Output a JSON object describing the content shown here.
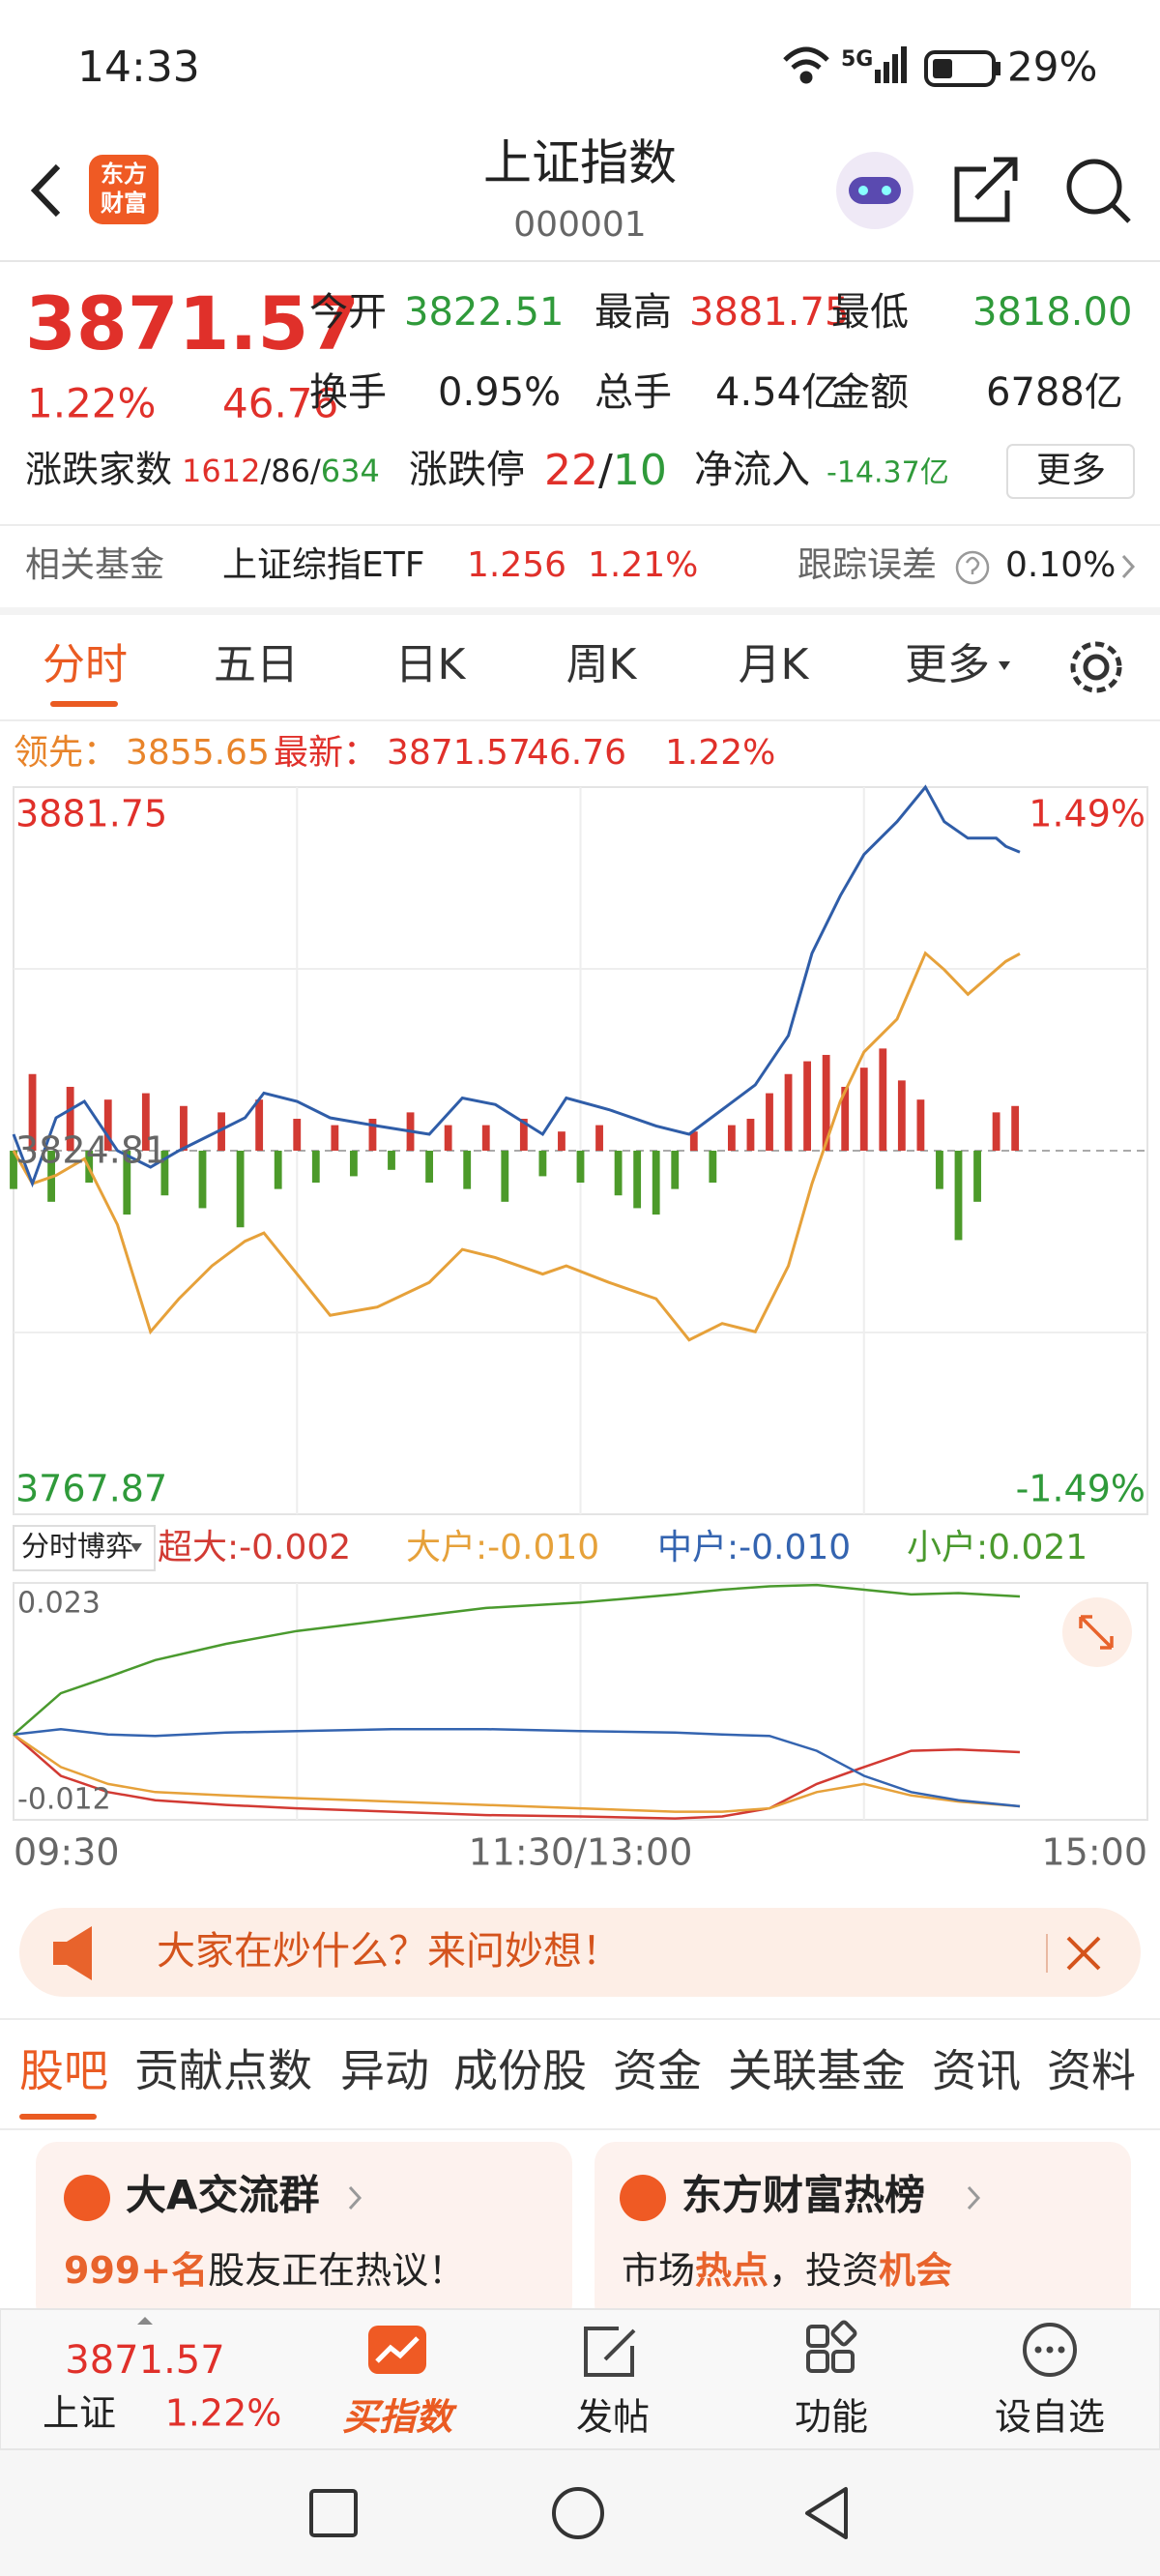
{
  "status_bar": {
    "time": "14:33",
    "battery": "29%"
  },
  "header": {
    "logo": [
      "东方",
      "财富"
    ],
    "title": "上证指数",
    "code": "000001"
  },
  "quote": {
    "price": "3871.57",
    "change_pct": "1.22%",
    "change": "46.76",
    "stats": [
      {
        "label": "今开",
        "value": "3822.51"
      },
      {
        "label": "最高",
        "value": "3881.75"
      },
      {
        "label": "最低",
        "value": "3818.00"
      },
      {
        "label": "换手",
        "value": "0.95%"
      },
      {
        "label": "总手",
        "value": "4.54亿"
      },
      {
        "label": "金额",
        "value": "6788亿"
      }
    ],
    "breadth": {
      "label": "涨跌家数",
      "parts": [
        "1612",
        "/86/",
        "634"
      ]
    },
    "limit": {
      "label": "涨跌停",
      "parts": [
        "22",
        "/",
        "10"
      ]
    },
    "net_inflow": {
      "label": "净流入",
      "value": "-14.37亿"
    },
    "more": "更多"
  },
  "related_fund": {
    "label": "相关基金",
    "name": "上证综指ETF",
    "price": "1.256",
    "change": "1.21%",
    "error_label": "跟踪误差",
    "error": "0.10%"
  },
  "tabs": [
    "分时",
    "五日",
    "日K",
    "周K",
    "月K",
    "更多"
  ],
  "legend": {
    "lead_label": "领先：",
    "lead": "3855.65",
    "latest_label": "最新：",
    "latest": "3871.57",
    "change": "46.76",
    "pct": "1.22%"
  },
  "intraday_chart": {
    "type": "line",
    "xlim": [
      0,
      240
    ],
    "xgrid": [
      60,
      120,
      180
    ],
    "ylim": [
      3767.87,
      3881.75
    ],
    "yticks": [
      3767.87,
      3824.81,
      3881.75
    ],
    "ygrid": [
      3796.34,
      3853.28
    ],
    "y2lim": [
      -1.49,
      1.49
    ],
    "y2ticks": [
      {
        "value": -1.49,
        "label": "-1.49%"
      },
      {
        "value": 1.49,
        "label": "1.49%"
      }
    ],
    "x": [
      0,
      4,
      9,
      15,
      22,
      29,
      35,
      42,
      49,
      53,
      60,
      67,
      77,
      88,
      95,
      102,
      112,
      117,
      126,
      136,
      143,
      150,
      157,
      164,
      169,
      175,
      180,
      187,
      193,
      197,
      202,
      208,
      210,
      213
    ],
    "series": [
      {
        "color": "#2f5da8",
        "values": [
          3827.39,
          3819.66,
          3829.96,
          3832.54,
          3824.81,
          3822.23,
          3824.81,
          3827.39,
          3829.96,
          3833.83,
          3832.54,
          3829.96,
          3828.68,
          3827.39,
          3833.06,
          3832.03,
          3827.39,
          3833.06,
          3831.25,
          3828.68,
          3827.39,
          3831.25,
          3835.12,
          3842.85,
          3855.73,
          3864.75,
          3871.19,
          3876.34,
          3881.75,
          3876.34,
          3873.76,
          3873.76,
          3872.48,
          3871.57
        ]
      },
      {
        "color": "#e6a13a",
        "values": [
          3824.81,
          3819.66,
          3820.95,
          3823.52,
          3813.22,
          3796.46,
          3801.62,
          3806.77,
          3810.64,
          3811.92,
          3805.48,
          3799.04,
          3800.33,
          3804.19,
          3809.35,
          3808.06,
          3805.48,
          3806.77,
          3804.19,
          3801.62,
          3795.17,
          3797.75,
          3796.46,
          3806.77,
          3819.66,
          3832.54,
          3840.27,
          3845.42,
          3855.73,
          3853.16,
          3849.29,
          3853.16,
          3854.44,
          3855.65
        ]
      }
    ],
    "bars": {
      "up_color": "#d23a33",
      "down_color": "#4c9a2a",
      "x": [
        0,
        4,
        8,
        12,
        16,
        20,
        24,
        28,
        32,
        36,
        40,
        44,
        48,
        52,
        56,
        60,
        64,
        68,
        72,
        76,
        80,
        84,
        88,
        92,
        96,
        100,
        104,
        108,
        112,
        116,
        120,
        124,
        128,
        132,
        136,
        140,
        144,
        148,
        152,
        156,
        160,
        164,
        168,
        172,
        176,
        180,
        184,
        188,
        192,
        196,
        200,
        204,
        208,
        212
      ],
      "values": [
        -6,
        12,
        -8,
        10,
        -5,
        8,
        -10,
        9,
        -7,
        7,
        -9,
        6,
        -12,
        8,
        -6,
        5,
        -5,
        4,
        -4,
        5,
        -3,
        6,
        -5,
        4,
        -6,
        4,
        -8,
        5,
        -4,
        3,
        -5,
        4,
        -7,
        -9,
        -10,
        -6,
        3,
        -5,
        4,
        5,
        9,
        12,
        14,
        15,
        10,
        13,
        16,
        11,
        8,
        -6,
        -14,
        -8,
        6,
        7
      ]
    }
  },
  "fund_flow_chart": {
    "type": "line",
    "selector": "分时博弈",
    "xlim": [
      0,
      240
    ],
    "xgrid": [
      60,
      120,
      180
    ],
    "xticks": [
      {
        "value": 0,
        "label": "09:30"
      },
      {
        "value": 120,
        "label": "11:30/13:00"
      },
      {
        "value": 240,
        "label": "15:00"
      }
    ],
    "ylim": [
      -0.012,
      0.023
    ],
    "yticks": [
      -0.012,
      0.023
    ],
    "x": [
      0,
      10,
      20,
      30,
      45,
      60,
      80,
      100,
      120,
      140,
      150,
      160,
      170,
      180,
      190,
      200,
      213
    ],
    "series": [
      {
        "name": "超大:-0.002",
        "color": "#d23a33",
        "values": [
          0.0006,
          -0.0055,
          -0.0079,
          -0.0091,
          -0.0098,
          -0.0103,
          -0.0108,
          -0.0113,
          -0.0115,
          -0.0118,
          -0.0115,
          -0.0103,
          -0.0067,
          -0.0042,
          -0.0018,
          -0.0016,
          -0.002
        ]
      },
      {
        "name": "大户:-0.010",
        "color": "#e6a13a",
        "values": [
          0.0006,
          -0.0042,
          -0.0067,
          -0.0079,
          -0.0084,
          -0.0088,
          -0.0093,
          -0.0098,
          -0.0103,
          -0.0108,
          -0.0108,
          -0.0103,
          -0.0079,
          -0.0067,
          -0.0084,
          -0.0093,
          -0.01
        ]
      },
      {
        "name": "中户:-0.010",
        "color": "#3464b0",
        "values": [
          0.0006,
          0.0014,
          0.0006,
          0.0004,
          0.0009,
          0.0011,
          0.0014,
          0.0014,
          0.0011,
          0.0009,
          0.0006,
          0.0004,
          -0.0018,
          -0.0055,
          -0.0079,
          -0.0091,
          -0.01
        ]
      },
      {
        "name": "小户:0.021",
        "color": "#4a9a2e",
        "values": [
          0.0006,
          0.0067,
          0.0091,
          0.0116,
          0.014,
          0.0159,
          0.0176,
          0.0193,
          0.0201,
          0.0213,
          0.022,
          0.0225,
          0.0227,
          0.022,
          0.0213,
          0.0215,
          0.021
        ]
      }
    ]
  },
  "banner": "大家在炒什么？来问妙想！",
  "section_tabs": [
    "股吧",
    "贡献点数",
    "异动",
    "成份股",
    "资金",
    "关联基金",
    "资讯",
    "资料"
  ],
  "cards": [
    {
      "title": "大A交流群",
      "line": [
        "999+名",
        "股友正在热议！"
      ]
    },
    {
      "title": "东方财富热榜",
      "line": [
        "市场",
        "热点",
        "，投资",
        "机会"
      ]
    }
  ],
  "bottom_nav": {
    "price": "3871.57",
    "name": "上证",
    "pct": "1.22%",
    "items": [
      "买指数",
      "发帖",
      "功能",
      "设自选"
    ]
  }
}
